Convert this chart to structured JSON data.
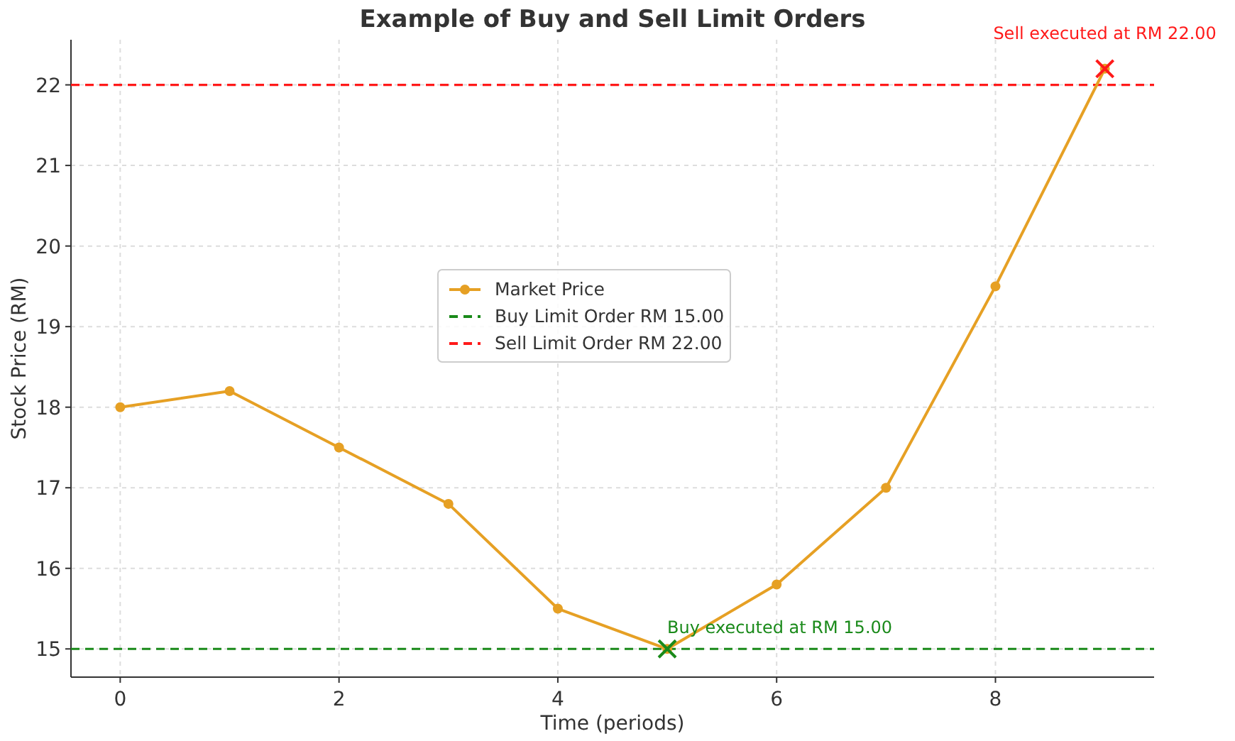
{
  "chart_data": {
    "type": "line",
    "title": "Example of Buy and Sell Limit Orders",
    "xlabel": "Time (periods)",
    "ylabel": "Stock Price (RM)",
    "x": [
      0,
      1,
      2,
      3,
      4,
      5,
      6,
      7,
      8,
      9
    ],
    "series": [
      {
        "name": "Market Price",
        "color": "#e6a024",
        "values": [
          18,
          18.2,
          17.5,
          16.8,
          15.5,
          15,
          15.8,
          17,
          19.5,
          22.2
        ],
        "marker": "circle"
      },
      {
        "type": "scatter",
        "x": [
          5
        ],
        "color": "#1a8a1a",
        "values": [
          15
        ],
        "marker": "cross"
      },
      {
        "type": "scatter",
        "x": [
          9
        ],
        "color": "#ff1a1a",
        "values": [
          22.2
        ],
        "marker": "cross"
      }
    ],
    "ref_lines": [
      {
        "axis": "y",
        "value": 15,
        "label": "Buy Limit Order RM 15.00",
        "color": "#1a8a1a",
        "line_style": "dashed"
      },
      {
        "axis": "y",
        "value": 22,
        "label": "Sell Limit Order RM 22.00",
        "color": "#ff1a1a",
        "line_style": "dashed"
      }
    ],
    "annotations": [
      {
        "text": "Buy executed at RM 15.00",
        "x": 5,
        "y": 15
      },
      {
        "text": "Sell executed at RM 22.00",
        "x": 9,
        "y": 22.2
      }
    ],
    "xlim": [
      -0.45,
      9.45
    ],
    "xticks": [
      0,
      2,
      4,
      6,
      8
    ],
    "ylim": [
      14.65,
      22.56
    ],
    "yticks": [
      15,
      16,
      17,
      18,
      19,
      20,
      21,
      22
    ],
    "grid": true,
    "legend": "center",
    "line_style": "solid"
  }
}
